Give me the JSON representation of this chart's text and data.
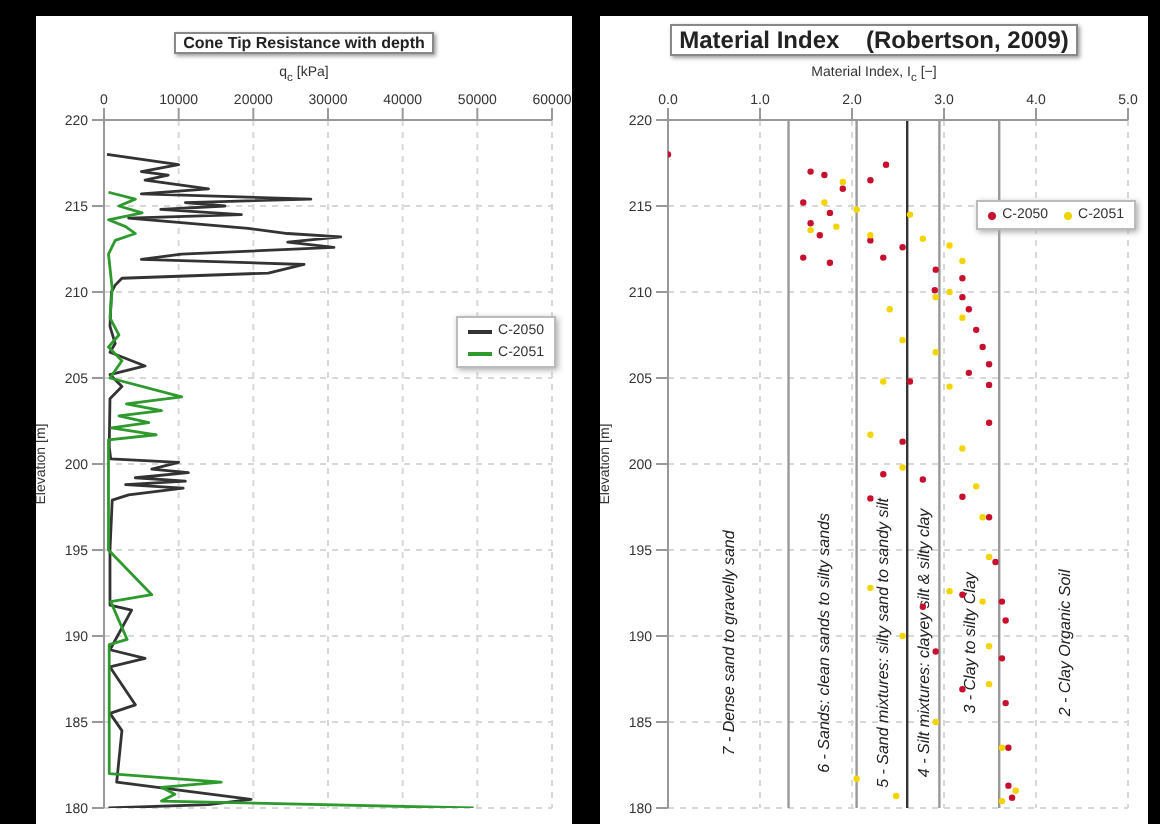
{
  "chart_data": [
    {
      "type": "line",
      "title": "Cone Tip Resistance with depth",
      "xlabel": "q$_{c}$ [kPa]",
      "ylabel": "Elevation [m]",
      "xlim": [
        0,
        60000
      ],
      "xticks": [
        0,
        10000,
        20000,
        30000,
        40000,
        50000,
        60000
      ],
      "ylim": [
        180,
        220
      ],
      "yticks": [
        180,
        185,
        190,
        195,
        200,
        205,
        210,
        215,
        220
      ],
      "grid": true,
      "legend": "right",
      "marker": "none",
      "line_style": "solid",
      "series": [
        {
          "name": "C-2050",
          "color": "#333333",
          "x": [
            400,
            10000,
            5000,
            8600,
            5500,
            14000,
            5000,
            27700,
            10900,
            16200,
            7600,
            18400,
            3300,
            19300,
            24600,
            31700,
            24600,
            30800,
            10400,
            5000,
            26800,
            22000,
            2400,
            1500,
            1000,
            800,
            1500,
            800,
            5500,
            800,
            2400,
            800,
            700,
            900,
            10000,
            6400,
            11300,
            4200,
            10900,
            2900,
            10600,
            3300,
            1100,
            800,
            800,
            3700,
            800,
            5500,
            800,
            4200,
            800,
            2400,
            1700,
            19700,
            14000,
            600
          ],
          "values": [
            218.0,
            217.4,
            217.0,
            216.8,
            216.5,
            216.0,
            215.7,
            215.4,
            215.2,
            215.0,
            214.8,
            214.5,
            214.3,
            213.7,
            213.4,
            213.2,
            212.9,
            212.6,
            212.2,
            211.9,
            211.6,
            211.1,
            210.8,
            210.4,
            210.0,
            208.0,
            207.0,
            206.5,
            205.7,
            205.2,
            204.5,
            203.8,
            201.0,
            200.3,
            200.1,
            199.7,
            199.5,
            199.2,
            199.0,
            198.8,
            198.6,
            198.2,
            197.9,
            195.0,
            191.8,
            191.5,
            189.2,
            188.7,
            188.2,
            186.0,
            185.5,
            184.5,
            181.5,
            180.5,
            180.2,
            180.0
          ]
        },
        {
          "name": "C-2051",
          "color": "#2e9a2e",
          "x": [
            600,
            4200,
            2000,
            5100,
            600,
            2900,
            4200,
            1500,
            600,
            1100,
            800,
            2000,
            600,
            2400,
            800,
            10400,
            3000,
            7700,
            2000,
            6000,
            1000,
            7000,
            600,
            600,
            6400,
            900,
            3100,
            700,
            700,
            15700,
            7700,
            9500,
            7700,
            49500
          ],
          "values": [
            215.8,
            215.4,
            215.0,
            214.6,
            214.2,
            213.8,
            213.4,
            213.0,
            212.2,
            210.2,
            208.5,
            207.5,
            206.8,
            206.0,
            205.0,
            203.9,
            203.5,
            203.1,
            202.8,
            202.4,
            202.1,
            201.7,
            201.4,
            195.0,
            192.4,
            192.0,
            189.8,
            189.5,
            182.0,
            181.5,
            181.2,
            180.8,
            180.4,
            180.0
          ]
        }
      ]
    },
    {
      "type": "scatter",
      "title": "Material Index    (Robertson, 2009)",
      "xlabel": "Material Index, I$_{c}$ [−]",
      "ylabel": "Elevation [m]",
      "xlim": [
        0,
        5
      ],
      "xticks": [
        {
          "value": 0,
          "label": "0.0"
        },
        {
          "value": 1,
          "label": "1.0"
        },
        {
          "value": 2,
          "label": "2.0"
        },
        {
          "value": 3,
          "label": "3.0"
        },
        {
          "value": 4,
          "label": "4.0"
        },
        {
          "value": 5,
          "label": "5.0"
        }
      ],
      "ylim": [
        180,
        220
      ],
      "yticks": [
        180,
        185,
        190,
        195,
        200,
        205,
        210,
        215,
        220
      ],
      "grid": true,
      "legend": "top right",
      "marker": "circle",
      "ref_lines": [
        {
          "axis": "x",
          "value": 1.31,
          "color": "#999999"
        },
        {
          "axis": "x",
          "value": 2.05,
          "color": "#999999"
        },
        {
          "axis": "x",
          "value": 2.6,
          "color": "#333333"
        },
        {
          "axis": "x",
          "value": 2.95,
          "color": "#999999"
        },
        {
          "axis": "x",
          "value": 3.6,
          "color": "#999999"
        }
      ],
      "annotations": [
        "7 - Dense sand to gravelly sand",
        "6 - Sands: clean sands to silty sands",
        "5 - Sand mixtures: silty sand to sandy silt",
        "4 - Silt mixtures: clayey silt & silty clay",
        "3 - Clay to silty Clay",
        "2 - Clay Organic Soil"
      ],
      "series": [
        {
          "name": "C-2050",
          "color": "#c8102e",
          "x": [
            0.0,
            2.37,
            1.55,
            1.7,
            2.2,
            1.9,
            1.47,
            1.76,
            1.55,
            1.65,
            2.2,
            2.55,
            1.47,
            2.34,
            1.76,
            2.91,
            3.2,
            2.9,
            3.2,
            3.27,
            3.35,
            3.42,
            3.49,
            3.27,
            2.63,
            3.49,
            3.49,
            2.55,
            2.34,
            2.77,
            3.2,
            2.2,
            3.49,
            3.56,
            3.2,
            3.63,
            2.77,
            3.67,
            2.91,
            3.63,
            3.2,
            3.67,
            3.7,
            3.7,
            3.74
          ],
          "values": [
            218.0,
            217.4,
            217.0,
            216.8,
            216.5,
            216.0,
            215.2,
            214.6,
            214.0,
            213.3,
            213.0,
            212.6,
            212.0,
            212.0,
            211.7,
            211.3,
            210.8,
            210.1,
            209.7,
            209.0,
            207.8,
            206.8,
            205.8,
            205.3,
            204.8,
            204.6,
            202.4,
            201.3,
            199.4,
            199.1,
            198.1,
            198.0,
            196.9,
            194.3,
            192.4,
            192.0,
            191.7,
            190.9,
            189.1,
            188.7,
            186.9,
            186.1,
            183.5,
            181.3,
            180.6
          ]
        },
        {
          "name": "C-2051",
          "color": "#f2d500",
          "x": [
            1.9,
            1.7,
            2.05,
            2.63,
            1.83,
            1.55,
            2.2,
            2.77,
            3.06,
            3.2,
            3.06,
            2.91,
            2.41,
            3.2,
            2.55,
            2.91,
            2.34,
            3.06,
            2.2,
            3.2,
            2.55,
            3.35,
            3.42,
            3.49,
            2.2,
            3.06,
            3.42,
            2.55,
            3.49,
            3.49,
            2.91,
            3.63,
            2.05,
            2.48,
            3.78,
            3.63
          ],
          "values": [
            216.4,
            215.2,
            214.8,
            214.5,
            213.8,
            213.6,
            213.3,
            213.1,
            212.7,
            211.8,
            210.0,
            209.7,
            209.0,
            208.5,
            207.2,
            206.5,
            204.8,
            204.5,
            201.7,
            200.9,
            199.8,
            198.7,
            196.9,
            194.6,
            192.8,
            192.6,
            192.0,
            190.0,
            189.4,
            187.2,
            185.0,
            183.5,
            181.7,
            180.7,
            181.0,
            180.4
          ]
        }
      ]
    }
  ]
}
